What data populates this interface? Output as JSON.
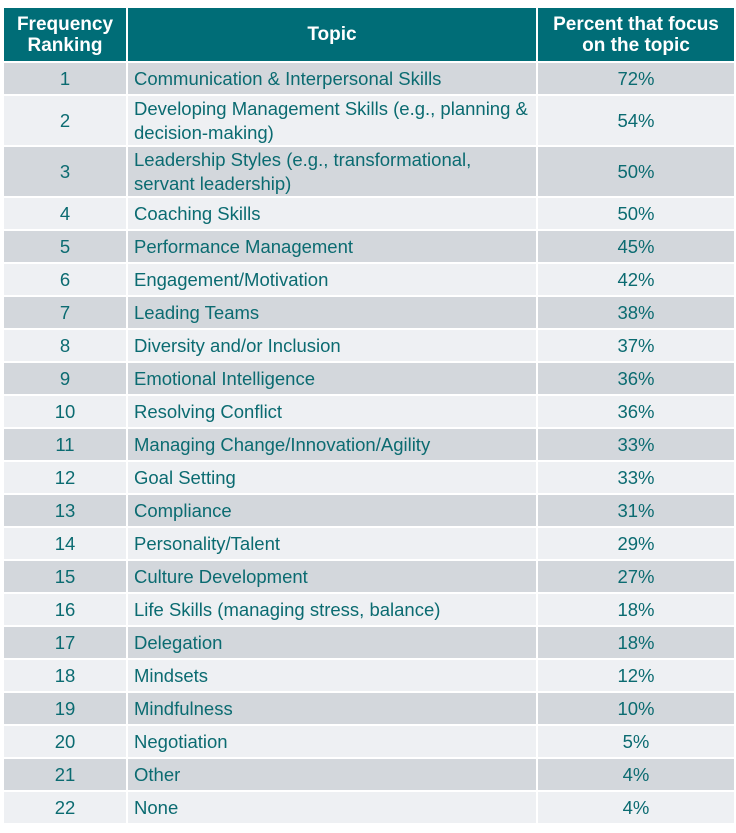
{
  "header": {
    "col1": "Frequency Ranking",
    "col2": "Topic",
    "col3": "Percent that focus on the topic"
  },
  "rows": [
    {
      "rank": "1",
      "topic": "Communication & Interpersonal Skills",
      "pct": "72%"
    },
    {
      "rank": "2",
      "topic": "Developing Management Skills (e.g., planning & decision-making)",
      "pct": "54%"
    },
    {
      "rank": "3",
      "topic": "Leadership Styles (e.g., transformational, servant leadership)",
      "pct": "50%"
    },
    {
      "rank": "4",
      "topic": "Coaching Skills",
      "pct": "50%"
    },
    {
      "rank": "5",
      "topic": "Performance Management",
      "pct": "45%"
    },
    {
      "rank": "6",
      "topic": "Engagement/Motivation",
      "pct": "42%"
    },
    {
      "rank": "7",
      "topic": "Leading Teams",
      "pct": "38%"
    },
    {
      "rank": "8",
      "topic": "Diversity and/or Inclusion",
      "pct": "37%"
    },
    {
      "rank": "9",
      "topic": "Emotional Intelligence",
      "pct": "36%"
    },
    {
      "rank": "10",
      "topic": "Resolving Conflict",
      "pct": "36%"
    },
    {
      "rank": "11",
      "topic": "Managing Change/Innovation/Agility",
      "pct": "33%"
    },
    {
      "rank": "12",
      "topic": "Goal Setting",
      "pct": "33%"
    },
    {
      "rank": "13",
      "topic": "Compliance",
      "pct": "31%"
    },
    {
      "rank": "14",
      "topic": "Personality/Talent",
      "pct": "29%"
    },
    {
      "rank": "15",
      "topic": "Culture Development",
      "pct": "27%"
    },
    {
      "rank": "16",
      "topic": "Life Skills (managing stress, balance)",
      "pct": "18%"
    },
    {
      "rank": "17",
      "topic": "Delegation",
      "pct": "18%"
    },
    {
      "rank": "18",
      "topic": "Mindsets",
      "pct": "12%"
    },
    {
      "rank": "19",
      "topic": "Mindfulness",
      "pct": "10%"
    },
    {
      "rank": "20",
      "topic": "Negotiation",
      "pct": "5%"
    },
    {
      "rank": "21",
      "topic": "Other",
      "pct": "4%"
    },
    {
      "rank": "22",
      "topic": "None",
      "pct": "4%"
    }
  ],
  "colors": {
    "header_bg": "#006d77",
    "header_text": "#ffffff",
    "row_odd": "#d3d7dc",
    "row_even": "#eef0f3",
    "cell_text": "#0b6b71"
  }
}
